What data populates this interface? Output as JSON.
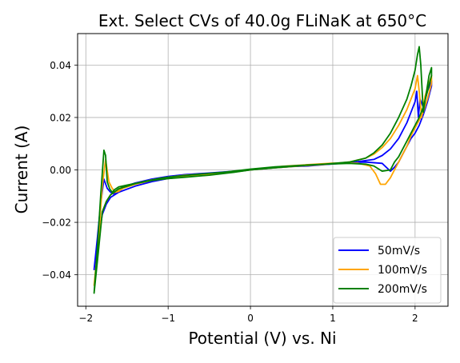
{
  "chart_data": {
    "type": "line",
    "title": "Ext. Select CVs of 40.0g FLiNaK at 650°C",
    "xlabel": "Potential (V) vs. Ni",
    "ylabel": "Current (A)",
    "xlim": [
      -2.1,
      2.4
    ],
    "ylim": [
      -0.052,
      0.052
    ],
    "xticks": [
      -2,
      -1,
      0,
      1,
      2
    ],
    "xtick_labels": [
      "−2",
      "−1",
      "0",
      "1",
      "2"
    ],
    "yticks": [
      -0.04,
      -0.02,
      0.0,
      0.02,
      0.04
    ],
    "ytick_labels": [
      "−0.04",
      "−0.02",
      "0.00",
      "0.02",
      "0.04"
    ],
    "grid": true,
    "legend_position": "lower-right",
    "series": [
      {
        "name": "50mV/s",
        "color": "#0000ff",
        "x": [
          -1.9,
          -1.85,
          -1.8,
          -1.75,
          -1.7,
          -1.6,
          -1.4,
          -1.2,
          -1.0,
          -0.8,
          -0.5,
          -0.2,
          0.0,
          0.3,
          0.6,
          0.9,
          1.2,
          1.5,
          1.6,
          1.7,
          1.8,
          1.9,
          1.95,
          2.0,
          2.02,
          2.04,
          2.06,
          2.1,
          2.15,
          2.2,
          2.2,
          2.15,
          2.1,
          2.05,
          2.0,
          1.95,
          1.9,
          1.85,
          1.8,
          1.75,
          1.7,
          1.6,
          1.4,
          1.2,
          1.0,
          0.7,
          0.4,
          0.1,
          -0.2,
          -0.5,
          -0.8,
          -1.0,
          -1.2,
          -1.4,
          -1.55,
          -1.62,
          -1.66,
          -1.7,
          -1.74,
          -1.78,
          -1.82,
          -1.86,
          -1.9
        ],
        "y": [
          -0.038,
          -0.027,
          -0.017,
          -0.013,
          -0.0105,
          -0.0085,
          -0.0062,
          -0.0045,
          -0.0033,
          -0.0025,
          -0.0017,
          -0.0008,
          0.0,
          0.0008,
          0.0015,
          0.002,
          0.0027,
          0.004,
          0.0055,
          0.008,
          0.012,
          0.018,
          0.022,
          0.026,
          0.03,
          0.02,
          0.027,
          0.024,
          0.03,
          0.034,
          0.032,
          0.026,
          0.021,
          0.017,
          0.014,
          0.012,
          0.009,
          0.006,
          0.003,
          0.001,
          -0.0005,
          0.0025,
          0.003,
          0.0028,
          0.0023,
          0.0015,
          0.0012,
          0.0003,
          -0.0005,
          -0.0012,
          -0.0018,
          -0.0025,
          -0.0035,
          -0.005,
          -0.0065,
          -0.008,
          -0.0092,
          -0.0085,
          -0.007,
          -0.0035,
          -0.013,
          -0.026,
          -0.038
        ]
      },
      {
        "name": "100mV/s",
        "color": "#ffa500",
        "x": [
          -1.9,
          -1.85,
          -1.8,
          -1.75,
          -1.7,
          -1.6,
          -1.4,
          -1.2,
          -1.0,
          -0.8,
          -0.5,
          -0.2,
          0.0,
          0.3,
          0.6,
          0.9,
          1.2,
          1.4,
          1.5,
          1.6,
          1.7,
          1.8,
          1.9,
          1.95,
          2.0,
          2.03,
          2.05,
          2.08,
          2.12,
          2.17,
          2.2,
          2.2,
          2.15,
          2.1,
          2.05,
          2.0,
          1.95,
          1.9,
          1.85,
          1.8,
          1.75,
          1.7,
          1.64,
          1.58,
          1.52,
          1.45,
          1.3,
          1.0,
          0.7,
          0.4,
          0.1,
          -0.2,
          -0.5,
          -0.8,
          -1.0,
          -1.2,
          -1.4,
          -1.55,
          -1.6,
          -1.64,
          -1.68,
          -1.72,
          -1.76,
          -1.8,
          -1.85,
          -1.9
        ],
        "y": [
          -0.044,
          -0.03,
          -0.016,
          -0.012,
          -0.0095,
          -0.0075,
          -0.0055,
          -0.004,
          -0.0032,
          -0.0026,
          -0.0018,
          -0.0008,
          0.0,
          0.0008,
          0.0015,
          0.0021,
          0.003,
          0.0045,
          0.006,
          0.0085,
          0.012,
          0.017,
          0.023,
          0.027,
          0.031,
          0.036,
          0.03,
          0.02,
          0.028,
          0.033,
          0.036,
          0.033,
          0.027,
          0.022,
          0.019,
          0.016,
          0.013,
          0.009,
          0.006,
          0.003,
          0.0,
          -0.003,
          -0.0055,
          -0.0055,
          -0.0015,
          0.0015,
          0.0026,
          0.0026,
          0.002,
          0.0014,
          0.0003,
          -0.0006,
          -0.0014,
          -0.002,
          -0.0028,
          -0.0038,
          -0.0052,
          -0.007,
          -0.0082,
          -0.0085,
          -0.007,
          -0.0045,
          0.004,
          -0.006,
          -0.028,
          -0.044
        ]
      },
      {
        "name": "200mV/s",
        "color": "#008000",
        "x": [
          -1.9,
          -1.85,
          -1.8,
          -1.75,
          -1.7,
          -1.6,
          -1.4,
          -1.2,
          -1.0,
          -0.8,
          -0.5,
          -0.2,
          0.0,
          0.3,
          0.6,
          0.9,
          1.2,
          1.4,
          1.5,
          1.6,
          1.7,
          1.8,
          1.9,
          1.95,
          2.0,
          2.03,
          2.05,
          2.07,
          2.1,
          2.13,
          2.17,
          2.2,
          2.2,
          2.15,
          2.1,
          2.05,
          2.0,
          1.95,
          1.9,
          1.85,
          1.8,
          1.75,
          1.7,
          1.6,
          1.5,
          1.4,
          1.2,
          0.9,
          0.6,
          0.3,
          0.0,
          -0.3,
          -0.6,
          -0.9,
          -1.1,
          -1.3,
          -1.5,
          -1.6,
          -1.65,
          -1.68,
          -1.71,
          -1.74,
          -1.76,
          -1.78,
          -1.82,
          -1.86,
          -1.9
        ],
        "y": [
          -0.047,
          -0.032,
          -0.016,
          -0.012,
          -0.0095,
          -0.0072,
          -0.0052,
          -0.004,
          -0.0033,
          -0.0028,
          -0.002,
          -0.0009,
          0.0,
          0.0008,
          0.0016,
          0.0022,
          0.003,
          0.0045,
          0.0065,
          0.0095,
          0.014,
          0.02,
          0.027,
          0.032,
          0.038,
          0.044,
          0.047,
          0.04,
          0.022,
          0.028,
          0.036,
          0.039,
          0.036,
          0.03,
          0.024,
          0.02,
          0.017,
          0.014,
          0.011,
          0.008,
          0.005,
          0.003,
          0.0,
          -0.0005,
          0.0015,
          0.0022,
          0.0025,
          0.0022,
          0.0017,
          0.0012,
          0.0003,
          -0.0008,
          -0.0016,
          -0.0024,
          -0.0032,
          -0.0045,
          -0.0058,
          -0.0065,
          -0.0075,
          -0.0085,
          -0.0072,
          -0.0045,
          0.0055,
          0.0075,
          -0.01,
          -0.03,
          -0.047
        ]
      }
    ]
  }
}
